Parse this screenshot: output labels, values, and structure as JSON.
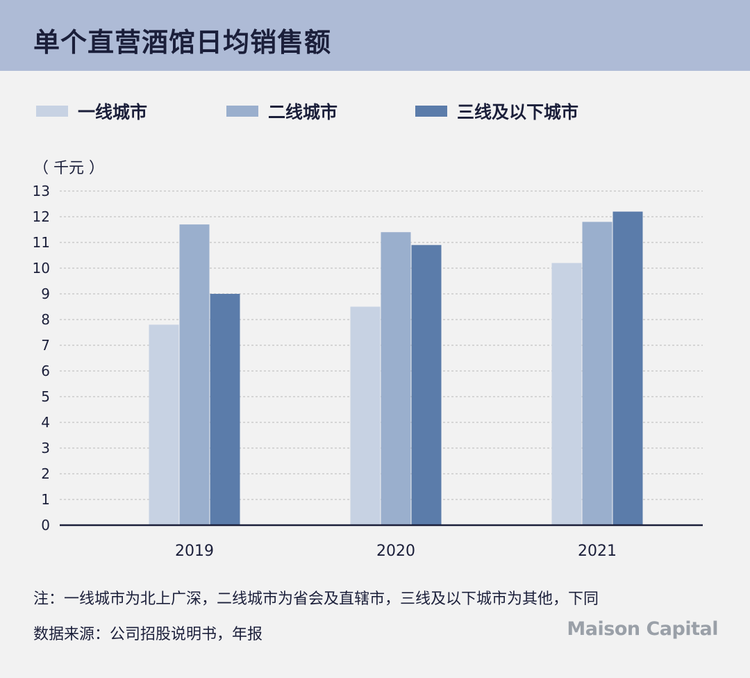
{
  "title": "单个直营酒馆日均销售额",
  "unit_label": "（ 千元 ）",
  "notes": {
    "line1": "注：一线城市为北上广深，二线城市为省会及直辖市，三线及以下城市为其他，下同",
    "line2": "数据来源：公司招股说明书，年报"
  },
  "logo_text": "Maison Capital",
  "colors": {
    "header_bg": "#aebbd6",
    "tier1": "#c7d2e3",
    "tier2": "#9aafcd",
    "tier3": "#5b7caa",
    "axis": "#1b1f3a",
    "grid": "#b8b8b8"
  },
  "chart_data": {
    "type": "bar",
    "categories": [
      "2019",
      "2020",
      "2021"
    ],
    "series": [
      {
        "name": "一线城市",
        "values": [
          7.8,
          8.5,
          10.2
        ]
      },
      {
        "name": "二线城市",
        "values": [
          11.7,
          11.4,
          11.8
        ]
      },
      {
        "name": "三线及以下城市",
        "values": [
          9.0,
          10.9,
          12.2
        ]
      }
    ],
    "y_ticks": [
      "0",
      "1",
      "2",
      "3",
      "4",
      "5",
      "6",
      "7",
      "8",
      "9",
      "10",
      "11",
      "12",
      "13"
    ],
    "ylim": [
      0,
      13
    ],
    "grid": true,
    "legend_position": "top"
  }
}
